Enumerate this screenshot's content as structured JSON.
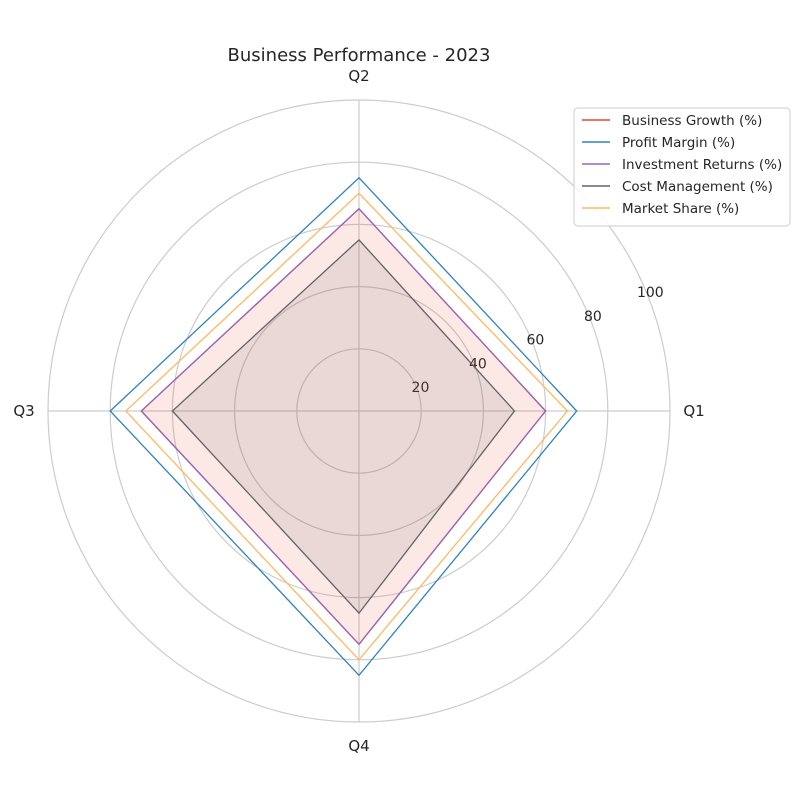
{
  "chart_data": {
    "type": "radar",
    "title": "Business Performance - 2023",
    "categories": [
      "Q1",
      "Q2",
      "Q3",
      "Q4"
    ],
    "rlim": [
      0,
      100
    ],
    "r_ticks": [
      20,
      40,
      60,
      80,
      100
    ],
    "grid": true,
    "legend_position": "top-right",
    "series": [
      {
        "name": "Business Growth (%)",
        "values": [
          60,
          65,
          70,
          75
        ],
        "color": "#e34a33",
        "fill": true
      },
      {
        "name": "Profit Margin (%)",
        "values": [
          70,
          75,
          80,
          85
        ],
        "color": "#3182bd",
        "fill": false
      },
      {
        "name": "Investment Returns (%)",
        "values": [
          60,
          65,
          70,
          75
        ],
        "color": "#9467bd",
        "fill": false
      },
      {
        "name": "Cost Management (%)",
        "values": [
          50,
          55,
          60,
          65
        ],
        "color": "#636363",
        "fill": true
      },
      {
        "name": "Market Share (%)",
        "values": [
          67,
          70,
          75,
          80
        ],
        "color": "#fdb863",
        "fill": false
      }
    ]
  }
}
